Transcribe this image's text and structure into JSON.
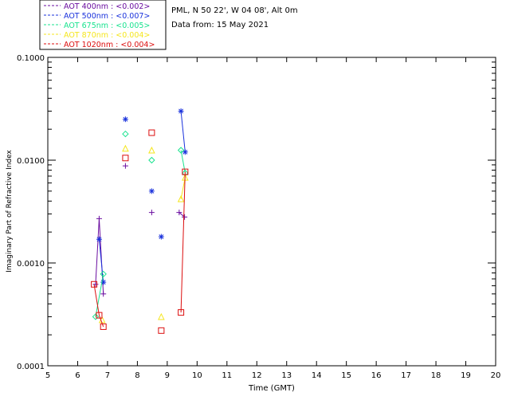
{
  "site": {
    "line1": "PML, N 50 22', W 04 08', Alt 0m",
    "line2": "Data from: 15 May 2021"
  },
  "colors": {
    "axis": "#000000",
    "background": "#ffffff"
  },
  "chart_data": {
    "type": "scatter",
    "title": "",
    "xlabel": "Time (GMT)",
    "ylabel": "Imaginary Part of Refractive Index",
    "xlim": [
      5,
      20
    ],
    "ylim": [
      0.0001,
      0.1
    ],
    "y_scale": "log",
    "grid": false,
    "legend_position": "top-left, outside plot",
    "x_ticks": [
      "5",
      "6",
      "7",
      "8",
      "9",
      "10",
      "11",
      "12",
      "13",
      "14",
      "15",
      "16",
      "17",
      "18",
      "19",
      "20"
    ],
    "y_ticks": [
      "0.0001",
      "0.0010",
      "0.0100",
      "0.1000"
    ],
    "series": [
      {
        "name": "AOT  400nm : <0.002>",
        "color": "#6a0da0",
        "marker": "plus",
        "x": [
          6.6,
          6.72,
          6.86,
          7.6,
          8.48,
          9.4,
          9.58
        ],
        "y": [
          0.00062,
          0.0027,
          0.0005,
          0.0088,
          0.0031,
          0.0031,
          0.0028
        ],
        "connected": [
          [
            0,
            1,
            2
          ],
          [
            5,
            6
          ]
        ]
      },
      {
        "name": "AOT  500nm : <0.007>",
        "color": "#1a32dc",
        "marker": "asterisk",
        "x": [
          6.72,
          6.86,
          7.6,
          8.48,
          8.8,
          9.46,
          9.6
        ],
        "y": [
          0.0017,
          0.00065,
          0.025,
          0.005,
          0.0018,
          0.03,
          0.012
        ],
        "connected": [
          [
            0,
            1
          ],
          [
            5,
            6
          ]
        ]
      },
      {
        "name": "AOT  675nm : <0.005>",
        "color": "#19e38f",
        "marker": "diamond",
        "x": [
          6.6,
          6.86,
          7.6,
          8.48,
          9.46,
          9.6
        ],
        "y": [
          0.0003,
          0.00078,
          0.018,
          0.01,
          0.0125,
          0.0075
        ],
        "connected": [
          [
            0,
            1
          ],
          [
            4,
            5
          ]
        ]
      },
      {
        "name": "AOT  870nm : <0.004>",
        "color": "#f5e61e",
        "marker": "triangle",
        "x": [
          6.82,
          7.6,
          8.48,
          8.8,
          9.46,
          9.6
        ],
        "y": [
          0.00028,
          0.013,
          0.0125,
          0.0003,
          0.0042,
          0.0068
        ],
        "connected": [
          [
            4,
            5
          ]
        ]
      },
      {
        "name": "AOT 1020nm : <0.004>",
        "color": "#dc0e0e",
        "marker": "square",
        "x": [
          6.55,
          6.72,
          6.86,
          7.6,
          8.48,
          8.8,
          9.46,
          9.6
        ],
        "y": [
          0.00062,
          0.00031,
          0.00024,
          0.0105,
          0.0185,
          0.00022,
          0.00033,
          0.0077
        ],
        "connected": [
          [
            0,
            1,
            2
          ],
          [
            6,
            7
          ]
        ]
      }
    ]
  }
}
